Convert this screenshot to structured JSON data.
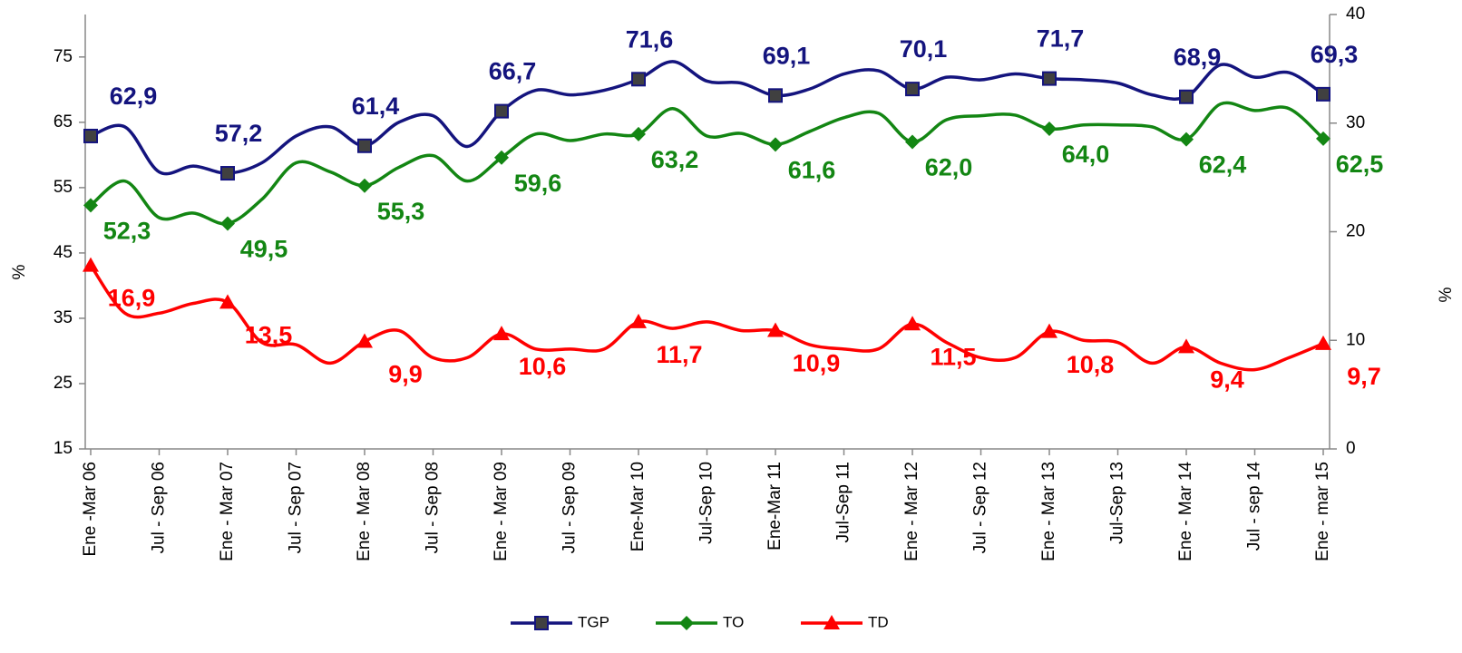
{
  "chart_data": {
    "type": "line",
    "ylabel": "%",
    "y2label": "%",
    "categories": [
      "Ene -Mar 06",
      null,
      "Jul - Sep 06",
      null,
      "Ene - Mar 07",
      null,
      "Jul - Sep 07",
      null,
      "Ene - Mar 08",
      null,
      "Jul - Sep 08",
      null,
      "Ene - Mar 09",
      null,
      "Jul - Sep 09",
      null,
      "Ene-Mar 10",
      null,
      "Jul-Sep 10",
      null,
      "Ene-Mar 11",
      null,
      "Jul-Sep 11",
      null,
      "Ene - Mar 12",
      null,
      "Jul - Sep 12",
      null,
      "Ene - Mar 13",
      null,
      "Jul-Sep 13",
      null,
      "Ene - Mar 14",
      null,
      "Jul - sep 14",
      null,
      "Ene - mar 15"
    ],
    "ylim": [
      15,
      81.5
    ],
    "yticks": [
      15,
      25,
      35,
      45,
      55,
      65,
      75
    ],
    "y2lim": [
      0,
      40
    ],
    "y2ticks": [
      0,
      10,
      20,
      30,
      40
    ],
    "legend": "bottom",
    "series": [
      {
        "name": "TGP",
        "color": "#14147e",
        "marker": "square",
        "values": [
          62.9,
          64.3,
          57.4,
          58.3,
          57.2,
          58.8,
          62.9,
          64.3,
          61.4,
          65,
          66,
          61.3,
          66.7,
          69.9,
          69.2,
          69.9,
          71.6,
          74.3,
          71.3,
          71,
          69.1,
          70.1,
          72.4,
          72.9,
          70.1,
          71.9,
          71.5,
          72.4,
          71.7,
          71.5,
          71,
          69.2,
          68.9,
          73.8,
          71.9,
          72.6,
          69.3
        ],
        "value_labels": [
          "62,9",
          null,
          null,
          null,
          "57,2",
          null,
          null,
          null,
          "61,4",
          null,
          null,
          null,
          "66,7",
          null,
          null,
          null,
          "71,6",
          null,
          null,
          null,
          "69,1",
          null,
          null,
          null,
          "70,1",
          null,
          null,
          null,
          "71,7",
          null,
          null,
          null,
          "68,9",
          null,
          null,
          null,
          "69,3"
        ]
      },
      {
        "name": "TO",
        "color": "#138613",
        "marker": "diamond",
        "values": [
          52.3,
          56,
          50.4,
          51.1,
          49.5,
          53.2,
          58.8,
          57.4,
          55.3,
          58.1,
          59.9,
          56,
          59.6,
          63.2,
          62.2,
          63.2,
          63.2,
          67.1,
          62.9,
          63.3,
          61.6,
          63.6,
          65.7,
          66.4,
          62.0,
          65.4,
          66,
          66.1,
          64.0,
          64.6,
          64.6,
          64.3,
          62.4,
          67.8,
          66.8,
          67.1,
          62.5
        ],
        "value_labels": [
          "52,3",
          null,
          null,
          null,
          "49,5",
          null,
          null,
          null,
          "55,3",
          null,
          null,
          null,
          "59,6",
          null,
          null,
          null,
          "63,2",
          null,
          null,
          null,
          "61,6",
          null,
          null,
          null,
          "62,0",
          null,
          null,
          null,
          "64,0",
          null,
          null,
          null,
          "62,4",
          null,
          null,
          null,
          "62,5"
        ]
      },
      {
        "name": "TD",
        "color": "#ff0000",
        "marker": "triangle",
        "axis": "y2",
        "values": [
          16.9,
          12.5,
          12.5,
          13.4,
          13.5,
          9.8,
          9.6,
          7.9,
          9.9,
          10.9,
          8.4,
          8.4,
          10.6,
          9.2,
          9.2,
          9.2,
          11.7,
          11.1,
          11.7,
          10.9,
          10.9,
          9.6,
          9.2,
          9.2,
          11.5,
          9.8,
          8.4,
          8.4,
          10.8,
          10,
          9.8,
          7.9,
          9.4,
          7.9,
          7.3,
          8.4,
          9.7
        ],
        "value_labels": [
          "16,9",
          null,
          null,
          null,
          "13,5",
          null,
          null,
          null,
          "9,9",
          null,
          null,
          null,
          "10,6",
          null,
          null,
          null,
          "11,7",
          null,
          null,
          null,
          "10,9",
          null,
          null,
          null,
          "11,5",
          null,
          null,
          null,
          "10,8",
          null,
          null,
          null,
          "9,4",
          null,
          null,
          null,
          "9,7"
        ]
      }
    ]
  }
}
